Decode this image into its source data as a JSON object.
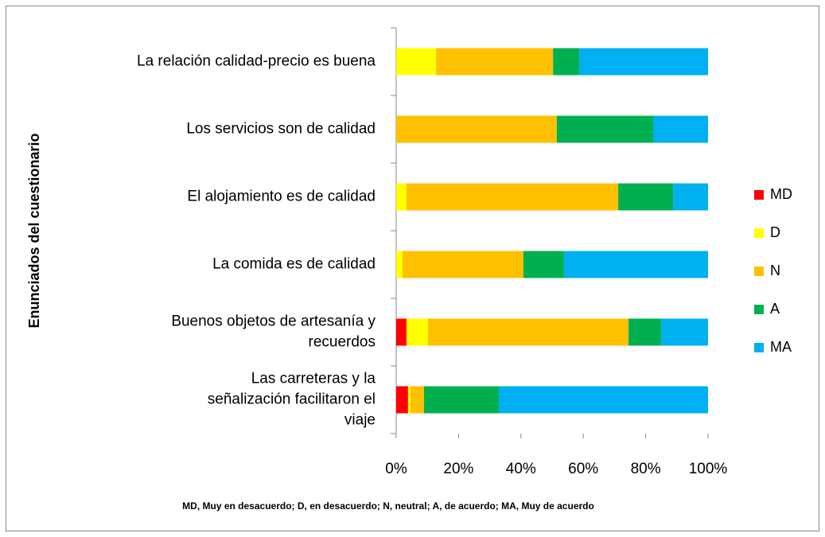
{
  "chart_data": {
    "type": "stacked-barh",
    "categories": [
      "La relación calidad-precio es buena",
      "Los servicios son de calidad",
      "El alojamiento es de calidad",
      "La comida es de calidad",
      "Buenos objetos de artesanía y recuerdos",
      "Las carreteras y la señalización facilitaron el viaje"
    ],
    "series": [
      {
        "name": "MD",
        "color": "#ff0000",
        "values": [
          0,
          0,
          0,
          0,
          3.3,
          3.8
        ]
      },
      {
        "name": "D",
        "color": "#ffff00",
        "values": [
          12.8,
          0,
          3.3,
          2.0,
          6.9,
          0.8
        ]
      },
      {
        "name": "N",
        "color": "#ffc000",
        "values": [
          37.5,
          51.5,
          67.9,
          38.8,
          64.3,
          4.3
        ]
      },
      {
        "name": "A",
        "color": "#00b050",
        "values": [
          8.4,
          30.9,
          17.6,
          13.0,
          10.5,
          24.0
        ]
      },
      {
        "name": "MA",
        "color": "#00b0f0",
        "values": [
          41.3,
          17.6,
          11.2,
          46.2,
          15.0,
          67.1
        ]
      }
    ],
    "xlim": [
      0,
      100
    ],
    "xticks": [
      {
        "value": 0,
        "label": "0%"
      },
      {
        "value": 20,
        "label": "20%"
      },
      {
        "value": 40,
        "label": "40%"
      },
      {
        "value": 60,
        "label": "60%"
      },
      {
        "value": 80,
        "label": "80%"
      },
      {
        "value": 100,
        "label": "100%"
      }
    ],
    "ylabel": "Enunciados del cuestionario",
    "note": "MD, Muy en desacuerdo; D, en desacuerdo; N, neutral; A, de acuerdo; MA, Muy de acuerdo",
    "legend": "right"
  }
}
